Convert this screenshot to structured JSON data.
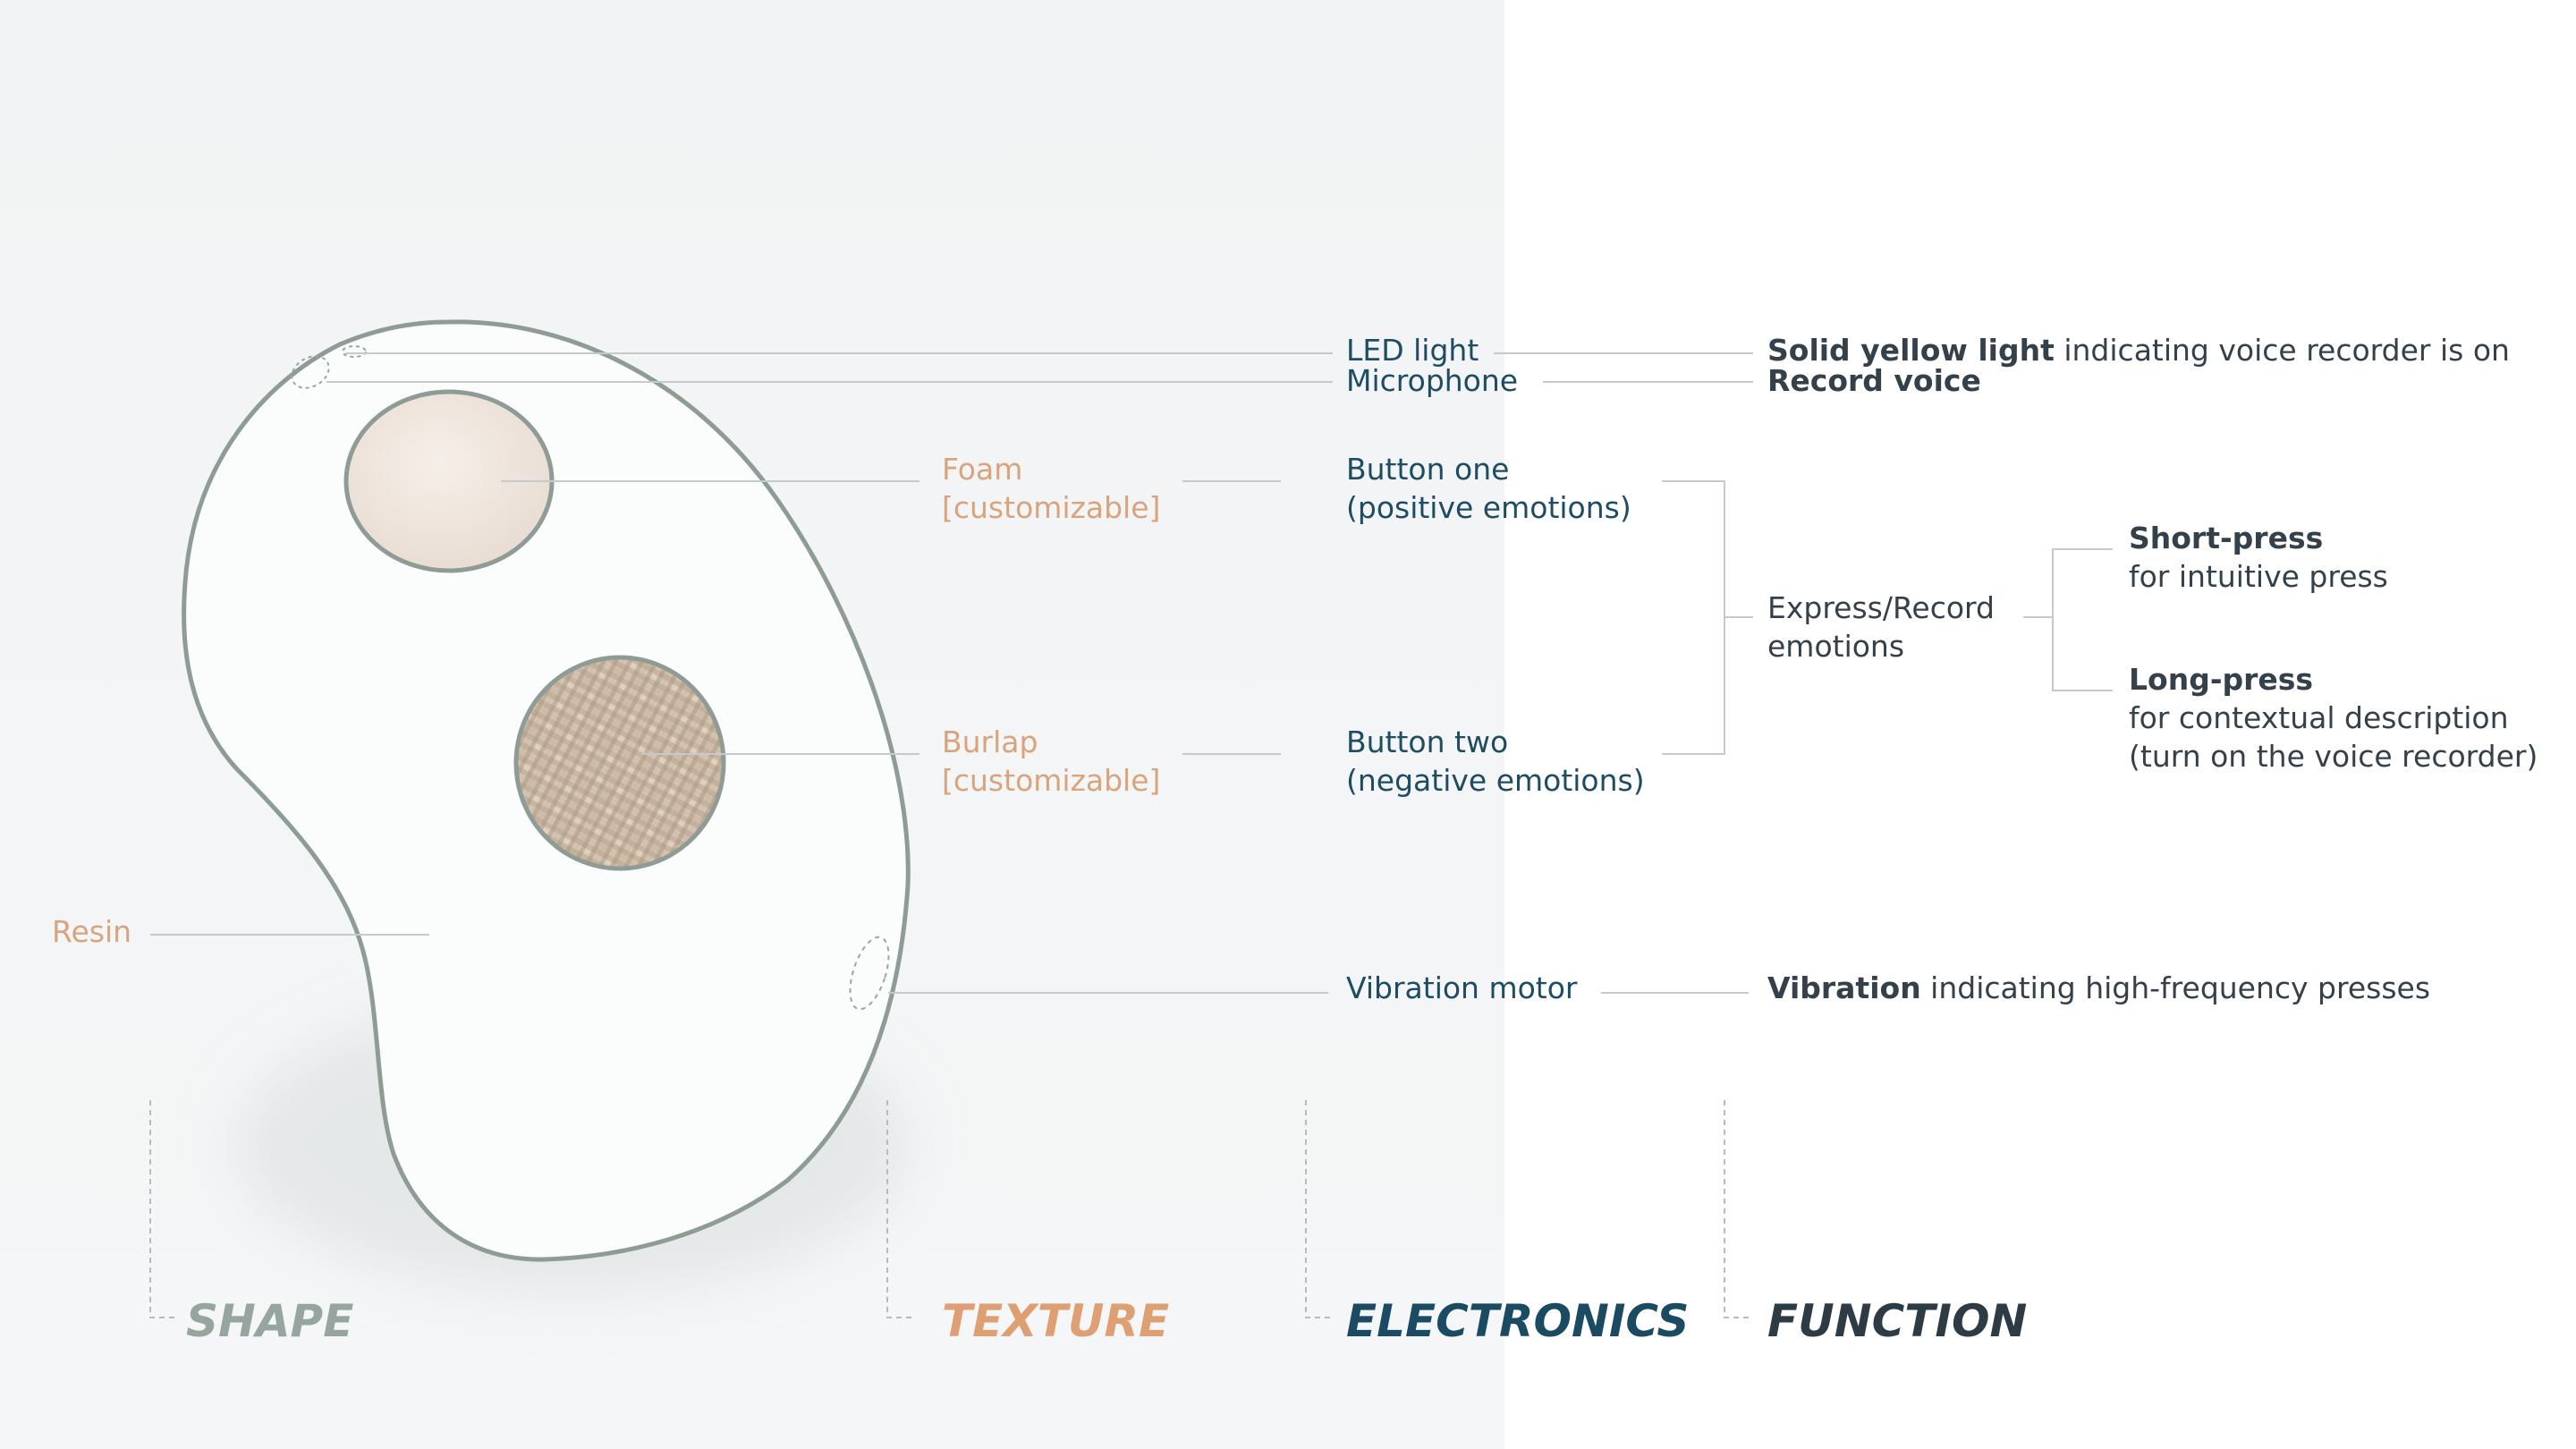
{
  "texture": {
    "foam_line1": "Foam",
    "foam_line2": "[customizable]",
    "burlap_line1": "Burlap",
    "burlap_line2": "[customizable]",
    "resin": "Resin"
  },
  "electronics": {
    "led": "LED light",
    "microphone": "Microphone",
    "button_one_line1": "Button one",
    "button_one_line2": "(positive emotions)",
    "button_two_line1": "Button two",
    "button_two_line2": "(negative emotions)",
    "vibration_motor": "Vibration motor"
  },
  "function": {
    "led_bold": "Solid yellow light",
    "led_rest": " indicating voice recorder is on",
    "mic_bold": "Record voice",
    "express_line1": "Express/Record",
    "express_line2": "emotions",
    "short_press_bold": "Short-press",
    "short_press_desc": "for intuitive press",
    "long_press_bold": "Long-press",
    "long_press_desc1": "for contextual description",
    "long_press_desc2": "(turn on the voice recorder)",
    "vibration_bold": "Vibration",
    "vibration_rest": " indicating high-frequency presses"
  },
  "headings": {
    "shape": "SHAPE",
    "texture": "TEXTURE",
    "electronics": "ELECTRONICS",
    "function": "FUNCTION"
  },
  "colors": {
    "shape": "#96a59d",
    "texture": "#de9f72",
    "electronics": "#1a4b62",
    "function": "#2d3b44",
    "outline": "#8e9c95",
    "leader": "#c4cacd"
  }
}
